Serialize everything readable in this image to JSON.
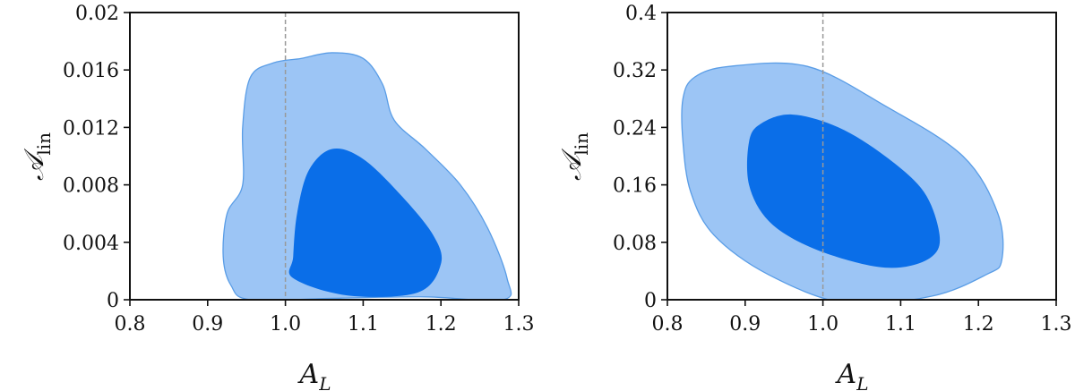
{
  "chart_data": [
    {
      "type": "contour",
      "xlabel": {
        "main": "A",
        "sub": "L"
      },
      "ylabel": {
        "main": "𝒜",
        "sub": "lin"
      },
      "xlim": [
        0.8,
        1.3
      ],
      "ylim": [
        0,
        0.02
      ],
      "xticks": [
        "0.8",
        "0.9",
        "1.0",
        "1.1",
        "1.2",
        "1.3"
      ],
      "yticks": [
        "0",
        "0.004",
        "0.008",
        "0.012",
        "0.016",
        "0.02"
      ],
      "reference_line": {
        "x": 1.0,
        "style": "dashed",
        "color": "#999999"
      },
      "colors": {
        "outer": "#9cc5f5",
        "inner": "#0a6ee8",
        "edge": "#5a9de6"
      },
      "contours": {
        "outer": [
          [
            0.955,
            0
          ],
          [
            0.93,
            0.001
          ],
          [
            0.92,
            0.003
          ],
          [
            0.925,
            0.006
          ],
          [
            0.945,
            0.008
          ],
          [
            0.945,
            0.012
          ],
          [
            0.955,
            0.0155
          ],
          [
            0.985,
            0.0165
          ],
          [
            1.02,
            0.0168
          ],
          [
            1.06,
            0.0172
          ],
          [
            1.1,
            0.0168
          ],
          [
            1.125,
            0.015
          ],
          [
            1.14,
            0.0125
          ],
          [
            1.18,
            0.0105
          ],
          [
            1.225,
            0.008
          ],
          [
            1.26,
            0.005
          ],
          [
            1.285,
            0.0015
          ],
          [
            1.28,
            0
          ],
          [
            1.18,
            0.0002
          ],
          [
            1.06,
            0.0001
          ]
        ],
        "inner": [
          [
            1.01,
            0.0015
          ],
          [
            1.01,
            0.003
          ],
          [
            1.015,
            0.006
          ],
          [
            1.03,
            0.009
          ],
          [
            1.06,
            0.0105
          ],
          [
            1.1,
            0.0098
          ],
          [
            1.15,
            0.0072
          ],
          [
            1.19,
            0.0045
          ],
          [
            1.2,
            0.0025
          ],
          [
            1.17,
            0.0005
          ],
          [
            1.08,
            0.0003
          ]
        ]
      }
    },
    {
      "type": "contour",
      "xlabel": {
        "main": "A",
        "sub": "L"
      },
      "ylabel": {
        "main": "𝒜",
        "sub": "lin"
      },
      "xlim": [
        0.8,
        1.3
      ],
      "ylim": [
        0,
        0.4
      ],
      "xticks": [
        "0.8",
        "0.9",
        "1.0",
        "1.1",
        "1.2",
        "1.3"
      ],
      "yticks": [
        "0",
        "0.08",
        "0.16",
        "0.24",
        "0.32",
        "0.4"
      ],
      "reference_line": {
        "x": 1.0,
        "style": "dashed",
        "color": "#999999"
      },
      "colors": {
        "outer": "#9cc5f5",
        "inner": "#0a6ee8",
        "edge": "#5a9de6"
      },
      "contours": {
        "outer": [
          [
            0.82,
            0.28
          ],
          [
            0.835,
            0.31
          ],
          [
            0.88,
            0.325
          ],
          [
            0.98,
            0.325
          ],
          [
            1.08,
            0.27
          ],
          [
            1.18,
            0.2
          ],
          [
            1.225,
            0.12
          ],
          [
            1.23,
            0.055
          ],
          [
            1.21,
            0.035
          ],
          [
            1.14,
            0.005
          ],
          [
            1.03,
            -0.005
          ],
          [
            0.93,
            0.035
          ],
          [
            0.86,
            0.09
          ],
          [
            0.83,
            0.15
          ],
          [
            0.82,
            0.22
          ]
        ],
        "inner": [
          [
            0.905,
            0.22
          ],
          [
            0.92,
            0.245
          ],
          [
            0.96,
            0.258
          ],
          [
            1.02,
            0.24
          ],
          [
            1.08,
            0.2
          ],
          [
            1.13,
            0.15
          ],
          [
            1.15,
            0.09
          ],
          [
            1.14,
            0.06
          ],
          [
            1.1,
            0.045
          ],
          [
            1.05,
            0.05
          ],
          [
            0.98,
            0.075
          ],
          [
            0.93,
            0.11
          ],
          [
            0.905,
            0.16
          ]
        ]
      }
    }
  ]
}
